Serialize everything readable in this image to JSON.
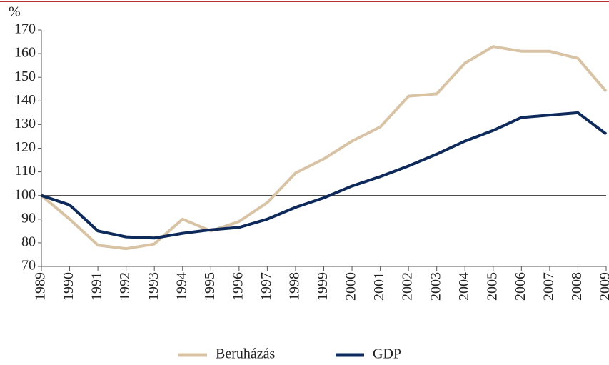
{
  "chart_data": {
    "type": "line",
    "y_label": "%",
    "categories": [
      "1989",
      "1990",
      "1991",
      "1992",
      "1993",
      "1994",
      "1995",
      "1996",
      "1997",
      "1998",
      "1999",
      "2000",
      "2001",
      "2002",
      "2003",
      "2004",
      "2005",
      "2006",
      "2007",
      "2008",
      "2009"
    ],
    "series": [
      {
        "name": "Beruházás",
        "color": "#d8c3a5",
        "values": [
          100,
          90,
          79,
          77.5,
          79.5,
          90,
          85,
          89,
          97,
          109.5,
          115.5,
          123,
          129,
          142,
          143,
          156,
          163,
          161,
          161,
          158,
          144
        ]
      },
      {
        "name": "GDP",
        "color": "#0d2a5a",
        "values": [
          100,
          96,
          85,
          82.5,
          82,
          84,
          85.5,
          86.5,
          90,
          95,
          99,
          104,
          108,
          112.5,
          117.5,
          123,
          127.5,
          133,
          134,
          135,
          126
        ]
      }
    ],
    "ylim": [
      70,
      170
    ],
    "yticks": [
      70,
      80,
      90,
      100,
      110,
      120,
      130,
      140,
      150,
      160,
      170
    ],
    "reference_line": 100
  }
}
